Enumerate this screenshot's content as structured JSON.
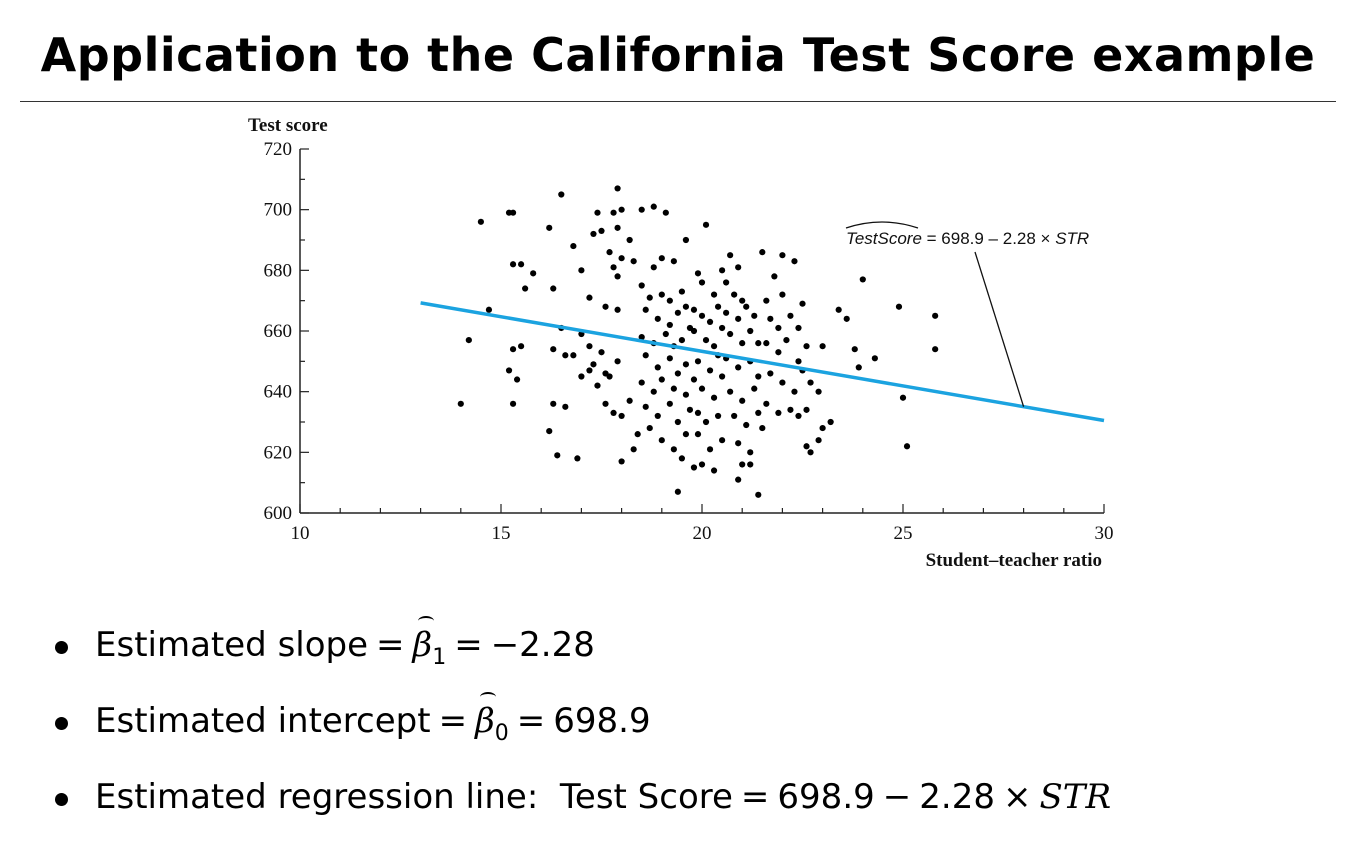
{
  "slide": {
    "title": "Application to the California Test Score example"
  },
  "bullets": [
    {
      "prefix": "Estimated slope",
      "symbol": "β",
      "subscript": "1",
      "value": "−2.28"
    },
    {
      "prefix": "Estimated intercept",
      "symbol": "β",
      "subscript": "0",
      "value": "698.9"
    },
    {
      "prefix": "Estimated regression line:",
      "lhs": "Test Score",
      "rhs_const": "698.9",
      "rhs_coef": "2.28",
      "rhs_var": "STR"
    }
  ],
  "chart_data": {
    "type": "scatter",
    "title": "",
    "xlabel": "Student–teacher ratio",
    "ylabel": "Test score",
    "xlim": [
      10,
      30
    ],
    "ylim": [
      600,
      720
    ],
    "xticks": [
      10,
      15,
      20,
      25,
      30
    ],
    "yticks": [
      600,
      620,
      640,
      660,
      680,
      700,
      720
    ],
    "grid": false,
    "annotation": {
      "lhs": "TestScore",
      "rhs": " = 698.9 – 2.28 × ",
      "var": "STR"
    },
    "regression_line": {
      "intercept": 698.9,
      "slope": -2.28,
      "x_range": [
        13,
        30
      ],
      "color": "#1ba3e0"
    },
    "point_color": "#000000",
    "points": [
      [
        14.0,
        636
      ],
      [
        14.2,
        657
      ],
      [
        14.5,
        696
      ],
      [
        14.7,
        667
      ],
      [
        15.2,
        699
      ],
      [
        15.3,
        699
      ],
      [
        15.3,
        682
      ],
      [
        15.5,
        682
      ],
      [
        15.3,
        654
      ],
      [
        15.5,
        655
      ],
      [
        15.2,
        647
      ],
      [
        15.4,
        644
      ],
      [
        15.3,
        636
      ],
      [
        15.6,
        674
      ],
      [
        15.8,
        679
      ],
      [
        16.2,
        694
      ],
      [
        16.5,
        705
      ],
      [
        16.3,
        674
      ],
      [
        16.8,
        688
      ],
      [
        16.5,
        661
      ],
      [
        16.3,
        654
      ],
      [
        16.6,
        652
      ],
      [
        16.8,
        652
      ],
      [
        16.3,
        636
      ],
      [
        16.6,
        635
      ],
      [
        16.2,
        627
      ],
      [
        16.4,
        619
      ],
      [
        16.9,
        618
      ],
      [
        17.0,
        680
      ],
      [
        17.3,
        692
      ],
      [
        17.4,
        699
      ],
      [
        17.5,
        693
      ],
      [
        17.8,
        699
      ],
      [
        17.9,
        707
      ],
      [
        18.0,
        700
      ],
      [
        17.9,
        694
      ],
      [
        18.2,
        690
      ],
      [
        17.7,
        686
      ],
      [
        18.0,
        684
      ],
      [
        17.8,
        681
      ],
      [
        17.9,
        678
      ],
      [
        18.3,
        683
      ],
      [
        17.2,
        671
      ],
      [
        17.6,
        668
      ],
      [
        17.9,
        667
      ],
      [
        17.0,
        659
      ],
      [
        17.2,
        655
      ],
      [
        17.5,
        653
      ],
      [
        17.3,
        649
      ],
      [
        17.2,
        647
      ],
      [
        17.6,
        646
      ],
      [
        17.0,
        645
      ],
      [
        17.4,
        642
      ],
      [
        17.9,
        650
      ],
      [
        17.7,
        645
      ],
      [
        17.6,
        636
      ],
      [
        17.8,
        633
      ],
      [
        18.0,
        632
      ],
      [
        18.2,
        637
      ],
      [
        18.0,
        617
      ],
      [
        18.3,
        621
      ],
      [
        18.4,
        626
      ],
      [
        18.5,
        700
      ],
      [
        18.8,
        701
      ],
      [
        19.1,
        699
      ],
      [
        19.0,
        684
      ],
      [
        18.8,
        681
      ],
      [
        19.3,
        683
      ],
      [
        18.5,
        675
      ],
      [
        18.7,
        671
      ],
      [
        19.0,
        672
      ],
      [
        19.2,
        670
      ],
      [
        19.5,
        673
      ],
      [
        18.6,
        667
      ],
      [
        18.9,
        664
      ],
      [
        19.2,
        662
      ],
      [
        19.4,
        666
      ],
      [
        19.6,
        668
      ],
      [
        18.5,
        658
      ],
      [
        18.8,
        656
      ],
      [
        19.1,
        659
      ],
      [
        19.3,
        655
      ],
      [
        19.5,
        657
      ],
      [
        19.7,
        661
      ],
      [
        18.6,
        652
      ],
      [
        18.9,
        648
      ],
      [
        19.2,
        651
      ],
      [
        19.4,
        646
      ],
      [
        19.6,
        649
      ],
      [
        18.5,
        643
      ],
      [
        18.8,
        640
      ],
      [
        19.0,
        644
      ],
      [
        19.3,
        641
      ],
      [
        19.6,
        639
      ],
      [
        18.6,
        635
      ],
      [
        18.9,
        632
      ],
      [
        19.2,
        636
      ],
      [
        19.4,
        630
      ],
      [
        19.7,
        634
      ],
      [
        18.7,
        628
      ],
      [
        19.0,
        624
      ],
      [
        19.3,
        621
      ],
      [
        19.5,
        618
      ],
      [
        19.4,
        607
      ],
      [
        19.6,
        626
      ],
      [
        19.8,
        615
      ],
      [
        19.6,
        690
      ],
      [
        19.9,
        679
      ],
      [
        20.1,
        695
      ],
      [
        20.0,
        676
      ],
      [
        20.3,
        672
      ],
      [
        19.8,
        667
      ],
      [
        20.0,
        665
      ],
      [
        20.2,
        663
      ],
      [
        20.4,
        668
      ],
      [
        19.8,
        660
      ],
      [
        20.1,
        657
      ],
      [
        20.3,
        655
      ],
      [
        20.5,
        661
      ],
      [
        19.9,
        650
      ],
      [
        20.2,
        647
      ],
      [
        20.4,
        652
      ],
      [
        19.8,
        644
      ],
      [
        20.0,
        641
      ],
      [
        20.3,
        638
      ],
      [
        20.5,
        645
      ],
      [
        19.9,
        633
      ],
      [
        20.1,
        630
      ],
      [
        20.4,
        632
      ],
      [
        19.9,
        626
      ],
      [
        20.2,
        621
      ],
      [
        20.5,
        624
      ],
      [
        20.0,
        616
      ],
      [
        20.3,
        614
      ],
      [
        20.5,
        680
      ],
      [
        20.7,
        685
      ],
      [
        20.9,
        681
      ],
      [
        20.6,
        676
      ],
      [
        20.8,
        672
      ],
      [
        21.0,
        670
      ],
      [
        20.6,
        666
      ],
      [
        20.9,
        664
      ],
      [
        21.1,
        668
      ],
      [
        21.3,
        665
      ],
      [
        20.7,
        659
      ],
      [
        21.0,
        656
      ],
      [
        21.2,
        660
      ],
      [
        21.4,
        656
      ],
      [
        20.6,
        651
      ],
      [
        20.9,
        648
      ],
      [
        21.2,
        650
      ],
      [
        21.4,
        645
      ],
      [
        20.7,
        640
      ],
      [
        21.0,
        637
      ],
      [
        21.3,
        641
      ],
      [
        20.8,
        632
      ],
      [
        21.1,
        629
      ],
      [
        21.4,
        633
      ],
      [
        20.9,
        623
      ],
      [
        21.2,
        620
      ],
      [
        21.0,
        616
      ],
      [
        20.9,
        611
      ],
      [
        21.2,
        616
      ],
      [
        21.4,
        606
      ],
      [
        21.5,
        628
      ],
      [
        21.5,
        686
      ],
      [
        21.8,
        678
      ],
      [
        21.6,
        670
      ],
      [
        22.0,
        672
      ],
      [
        21.7,
        664
      ],
      [
        21.9,
        661
      ],
      [
        22.2,
        665
      ],
      [
        21.6,
        656
      ],
      [
        21.9,
        653
      ],
      [
        22.1,
        657
      ],
      [
        22.4,
        650
      ],
      [
        21.7,
        646
      ],
      [
        22.0,
        643
      ],
      [
        22.3,
        640
      ],
      [
        21.6,
        636
      ],
      [
        21.9,
        633
      ],
      [
        22.2,
        634
      ],
      [
        22.0,
        685
      ],
      [
        22.3,
        683
      ],
      [
        22.5,
        669
      ],
      [
        22.4,
        661
      ],
      [
        22.6,
        655
      ],
      [
        22.5,
        647
      ],
      [
        22.7,
        643
      ],
      [
        22.6,
        634
      ],
      [
        22.4,
        632
      ],
      [
        22.6,
        622
      ],
      [
        22.7,
        620
      ],
      [
        22.9,
        624
      ],
      [
        23.0,
        628
      ],
      [
        23.2,
        630
      ],
      [
        22.9,
        640
      ],
      [
        23.0,
        655
      ],
      [
        23.4,
        667
      ],
      [
        23.6,
        664
      ],
      [
        23.8,
        654
      ],
      [
        23.9,
        648
      ],
      [
        24.3,
        651
      ],
      [
        24.0,
        677
      ],
      [
        24.9,
        668
      ],
      [
        25.0,
        638
      ],
      [
        25.1,
        622
      ],
      [
        25.8,
        665
      ],
      [
        25.8,
        654
      ]
    ]
  }
}
